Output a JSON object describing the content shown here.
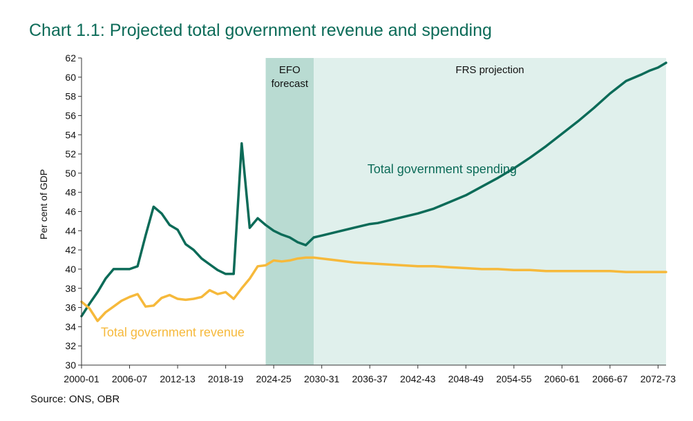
{
  "chart_data": {
    "type": "line",
    "title": "Chart 1.1: Projected total government revenue and spending",
    "xlabel": "",
    "ylabel": "Per cent of GDP",
    "ylim": [
      30,
      62
    ],
    "yticks": [
      30,
      32,
      34,
      36,
      38,
      40,
      42,
      44,
      46,
      48,
      50,
      52,
      54,
      56,
      58,
      60,
      62
    ],
    "x_range": [
      2000,
      2073
    ],
    "xtick_years": [
      2000,
      2006,
      2012,
      2018,
      2024,
      2030,
      2036,
      2042,
      2048,
      2054,
      2060,
      2066,
      2072
    ],
    "xtick_labels": [
      "2000-01",
      "2006-07",
      "2012-13",
      "2018-19",
      "2024-25",
      "2030-31",
      "2036-37",
      "2042-43",
      "2048-49",
      "2054-55",
      "2060-61",
      "2066-67",
      "2072-73"
    ],
    "regions": [
      {
        "label_lines": [
          "EFO",
          "forecast"
        ],
        "start": 2023,
        "end": 2029,
        "color": "#b9dbd2"
      },
      {
        "label_lines": [
          "FRS projection"
        ],
        "start": 2029,
        "end": 2073,
        "color": "#e0f0ec"
      }
    ],
    "series": [
      {
        "name": "Total government spending",
        "color": "#0c6b58",
        "x": [
          2000,
          2001,
          2002,
          2003,
          2004,
          2005,
          2006,
          2007,
          2008,
          2009,
          2010,
          2011,
          2012,
          2013,
          2014,
          2015,
          2016,
          2017,
          2018,
          2019,
          2020,
          2021,
          2022,
          2023,
          2024,
          2025,
          2026,
          2027,
          2028,
          2029,
          2030,
          2032,
          2034,
          2036,
          2037,
          2038,
          2040,
          2042,
          2044,
          2046,
          2048,
          2050,
          2052,
          2054,
          2056,
          2058,
          2060,
          2062,
          2064,
          2066,
          2068,
          2070,
          2071,
          2072,
          2073
        ],
        "values": [
          35.1,
          36.4,
          37.6,
          39.0,
          40.0,
          40.0,
          40.0,
          40.3,
          43.5,
          46.5,
          45.8,
          44.6,
          44.1,
          42.6,
          42.0,
          41.1,
          40.5,
          39.9,
          39.5,
          39.5,
          53.1,
          44.3,
          45.3,
          44.6,
          44.0,
          43.6,
          43.3,
          42.8,
          42.5,
          43.3,
          43.5,
          43.9,
          44.3,
          44.7,
          44.8,
          45.0,
          45.4,
          45.8,
          46.3,
          47.0,
          47.7,
          48.6,
          49.5,
          50.5,
          51.6,
          52.8,
          54.1,
          55.4,
          56.8,
          58.3,
          59.6,
          60.3,
          60.7,
          61.0,
          61.5
        ]
      },
      {
        "name": "Total government revenue",
        "color": "#f6b93b",
        "x": [
          2000,
          2001,
          2002,
          2003,
          2004,
          2005,
          2006,
          2007,
          2008,
          2009,
          2010,
          2011,
          2012,
          2013,
          2014,
          2015,
          2016,
          2017,
          2018,
          2019,
          2020,
          2021,
          2022,
          2023,
          2024,
          2025,
          2026,
          2027,
          2028,
          2029,
          2030,
          2032,
          2034,
          2036,
          2038,
          2040,
          2042,
          2044,
          2046,
          2048,
          2050,
          2052,
          2054,
          2056,
          2058,
          2060,
          2062,
          2064,
          2066,
          2068,
          2070,
          2072,
          2073
        ],
        "values": [
          36.6,
          35.9,
          34.6,
          35.5,
          36.1,
          36.7,
          37.1,
          37.4,
          36.1,
          36.2,
          37.0,
          37.3,
          36.9,
          36.8,
          36.9,
          37.1,
          37.8,
          37.4,
          37.6,
          36.9,
          38.0,
          39.0,
          40.3,
          40.4,
          40.9,
          40.8,
          40.9,
          41.1,
          41.2,
          41.2,
          41.1,
          40.9,
          40.7,
          40.6,
          40.5,
          40.4,
          40.3,
          40.3,
          40.2,
          40.1,
          40.0,
          40.0,
          39.9,
          39.9,
          39.8,
          39.8,
          39.8,
          39.8,
          39.8,
          39.7,
          39.7,
          39.7,
          39.7
        ]
      }
    ],
    "annotations": [
      {
        "text": "Total government spending",
        "series": 0,
        "color": "#0c6b58"
      },
      {
        "text": "Total government revenue",
        "series": 1,
        "color": "#f6b93b"
      }
    ]
  },
  "source": "Source: ONS, OBR"
}
